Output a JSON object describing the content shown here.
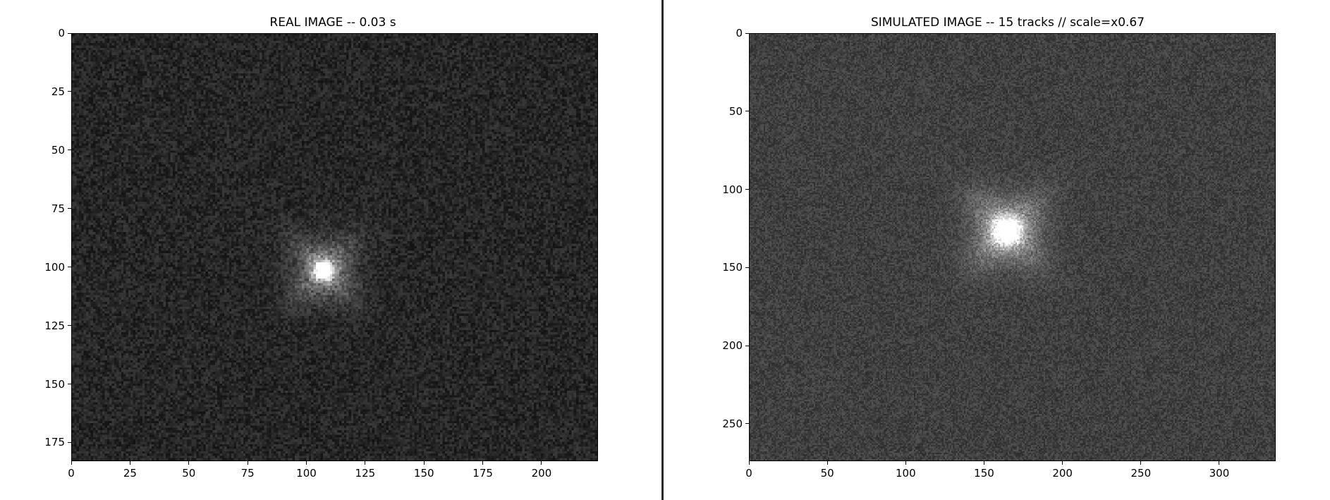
{
  "panels": [
    {
      "title": "REAL IMAGE -- 0.03 s",
      "chart_data": {
        "type": "heatmap",
        "colormap": "gray",
        "xlim": [
          0,
          224
        ],
        "ylim": [
          0,
          183
        ],
        "y_inverted": true,
        "x_ticks": [
          "0",
          "25",
          "50",
          "75",
          "100",
          "125",
          "150",
          "175",
          "200"
        ],
        "x_tick_values": [
          0,
          25,
          50,
          75,
          100,
          125,
          150,
          175,
          200
        ],
        "y_ticks": [
          "0",
          "25",
          "50",
          "75",
          "100",
          "125",
          "150",
          "175"
        ],
        "y_tick_values": [
          0,
          25,
          50,
          75,
          100,
          125,
          150,
          175
        ],
        "background_level": 0.15,
        "noise_level": 0.08,
        "source": {
          "x": 107,
          "y": 101,
          "peak": 0.95,
          "core_sigma": 2.5,
          "halo_sigma": 13,
          "halo_level": 0.18
        }
      }
    },
    {
      "title": "SIMULATED IMAGE -- 15 tracks // scale=x0.67",
      "chart_data": {
        "type": "heatmap",
        "colormap": "gray",
        "xlim": [
          0,
          336
        ],
        "ylim": [
          0,
          274
        ],
        "y_inverted": true,
        "x_ticks": [
          "0",
          "50",
          "100",
          "150",
          "200",
          "250",
          "300"
        ],
        "x_tick_values": [
          0,
          50,
          100,
          150,
          200,
          250,
          300
        ],
        "y_ticks": [
          "0",
          "50",
          "100",
          "150",
          "200",
          "250"
        ],
        "y_tick_values": [
          0,
          50,
          100,
          150,
          200,
          250
        ],
        "background_level": 0.25,
        "noise_level": 0.08,
        "source": {
          "x": 164,
          "y": 126,
          "peak": 0.7,
          "core_sigma": 6,
          "halo_sigma": 22,
          "halo_level": 0.2
        }
      }
    }
  ]
}
